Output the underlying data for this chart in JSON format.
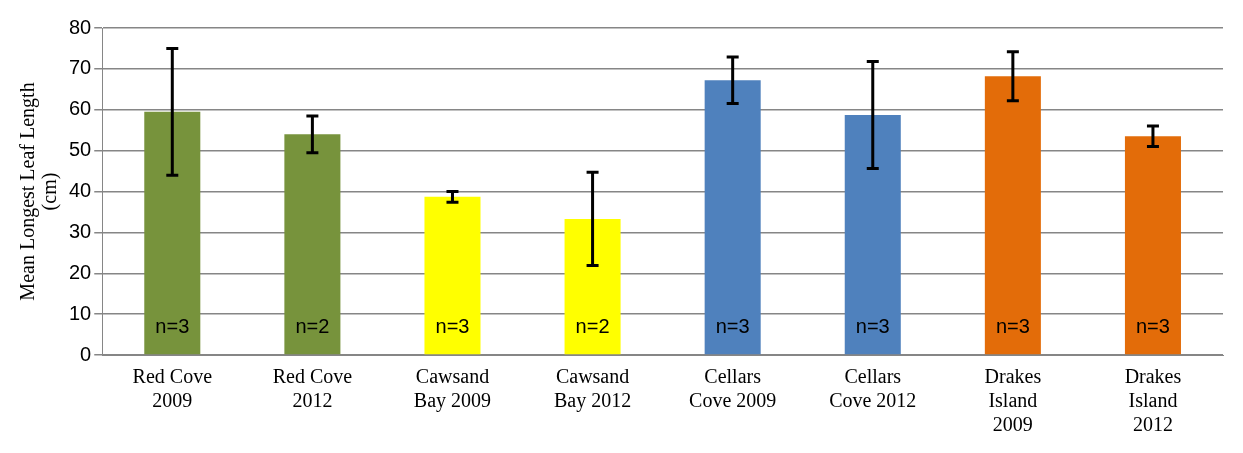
{
  "chart_data": {
    "type": "bar",
    "ylabel": "Mean Longest Leaf Length (cm)",
    "categories": [
      "Red Cove 2009",
      "Red Cove 2012",
      "Cawsand Bay 2009",
      "Cawsand Bay 2012",
      "Cellars Cove 2009",
      "Cellars Cove 2012",
      "Drakes Island 2009",
      "Drakes Island 2012"
    ],
    "values": [
      59.5,
      54,
      38.7,
      33.3,
      67.2,
      58.7,
      68.2,
      53.5
    ],
    "errors": [
      15.5,
      4.5,
      1.3,
      11.4,
      5.7,
      13.1,
      6,
      2.5
    ],
    "colors": [
      "#77933c",
      "#77933c",
      "#ffff00",
      "#ffff00",
      "#4f81bd",
      "#4f81bd",
      "#e36c09",
      "#e36c09"
    ],
    "annotations": [
      "n=3",
      "n=2",
      "n=3",
      "n=2",
      "n=3",
      "n=3",
      "n=3",
      "n=3"
    ],
    "ylim": [
      0,
      80
    ],
    "yticks": [
      0,
      10,
      20,
      30,
      40,
      50,
      60,
      70,
      80
    ],
    "grid": "y",
    "legend": false
  }
}
